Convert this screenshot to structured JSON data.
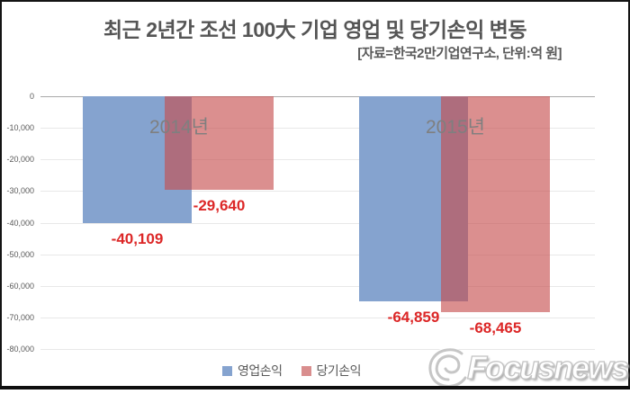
{
  "header": {
    "title": "최근 2년간 조선 100大 기업 영업 및 당기손익 변동",
    "subtitle": "[자료=한국2만기업연구소, 단위:억 원]"
  },
  "chart_data": {
    "type": "bar",
    "title": "최근 2년간 조선 100大 기업 영업 및 당기손익 변동",
    "source_note": "[자료=한국2만기업연구소, 단위:억 원]",
    "categories": [
      "2014년",
      "2015년"
    ],
    "series": [
      {
        "name": "영업손익",
        "values": [
          -40109,
          -64859
        ],
        "value_labels": [
          "-40,109",
          "-64,859"
        ],
        "color": "#85A3CF"
      },
      {
        "name": "당기손익",
        "values": [
          -29640,
          -68465
        ],
        "value_labels": [
          "-29,640",
          "-68,465"
        ],
        "color": "#D98E8E",
        "fill_rgba": "rgba(198,77,77,0.63)"
      }
    ],
    "ylim": [
      -80000,
      0
    ],
    "yticks": [
      0,
      -10000,
      -20000,
      -30000,
      -40000,
      -50000,
      -60000,
      -70000,
      -80000
    ],
    "ytick_labels": [
      "0",
      "-10,000",
      "-20,000",
      "-30,000",
      "-40,000",
      "-50,000",
      "-60,000",
      "-70,000",
      "-80,000"
    ],
    "grid": true,
    "legend_position": "bottom"
  },
  "colors": {
    "value_label": "#DC2727",
    "year_label": "#7F7F7F",
    "gridline": "#E8E8E8",
    "zero_line": "#A9A9A9",
    "text": "#595959"
  },
  "logo": {
    "text": "Focusnews",
    "icon": "swirl-e-logo"
  }
}
